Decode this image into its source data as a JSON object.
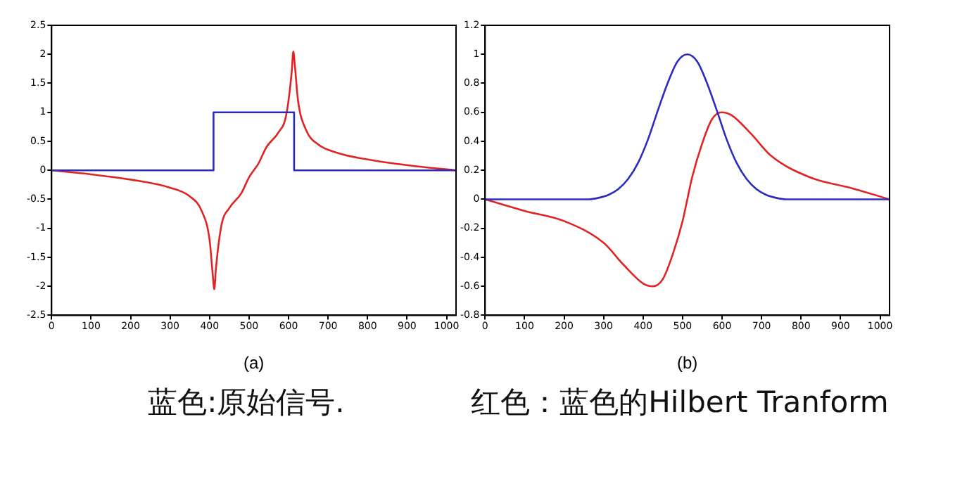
{
  "chart_data": [
    {
      "type": "line",
      "xlabel": "(a)",
      "annotations": [
        "蓝色:原始信号."
      ],
      "xlim": [
        0,
        1024
      ],
      "xticks": [
        0,
        100,
        200,
        300,
        400,
        500,
        600,
        700,
        800,
        900,
        1000
      ],
      "ylim": [
        -2.5,
        2.5
      ],
      "yticks": [
        -2.5,
        -2,
        -1.5,
        -1,
        -0.5,
        0,
        0.5,
        1,
        1.5,
        2,
        2.5
      ],
      "grid": false,
      "legend": false,
      "marker": "none",
      "line_style": "solid",
      "series": [
        {
          "color": "#2b2bc0",
          "x": [
            0,
            410,
            410,
            614,
            614,
            1024
          ],
          "values": [
            0,
            0,
            1,
            1,
            0,
            0
          ]
        },
        {
          "color": "#e02424",
          "x": [
            0,
            100,
            200,
            300,
            350,
            380,
            400,
            408,
            412,
            416,
            430,
            450,
            480,
            500,
            512,
            524,
            544,
            574,
            594,
            608,
            612,
            616,
            624,
            644,
            674,
            724,
            824,
            924,
            1024
          ],
          "values": [
            0,
            -0.07,
            -0.16,
            -0.3,
            -0.45,
            -0.7,
            -1.2,
            -1.8,
            -2.05,
            -1.7,
            -0.95,
            -0.65,
            -0.4,
            -0.12,
            0,
            0.12,
            0.4,
            0.65,
            0.95,
            1.7,
            2.05,
            1.8,
            1.2,
            0.7,
            0.45,
            0.3,
            0.16,
            0.07,
            0
          ]
        }
      ]
    },
    {
      "type": "line",
      "xlabel": "(b)",
      "annotations": [
        "红色：蓝色的Hilbert Tranform"
      ],
      "xlim": [
        0,
        1024
      ],
      "xticks": [
        0,
        100,
        200,
        300,
        400,
        500,
        600,
        700,
        800,
        900,
        1000
      ],
      "ylim": [
        -0.8,
        1.2
      ],
      "yticks": [
        -0.8,
        -0.6,
        -0.4,
        -0.2,
        0,
        0.2,
        0.4,
        0.6,
        0.8,
        1,
        1.2
      ],
      "grid": false,
      "legend": false,
      "marker": "none",
      "line_style": "solid",
      "series": [
        {
          "color": "#2b2bc0",
          "x": [
            0,
            262,
            287,
            312,
            337,
            362,
            387,
            412,
            437,
            462,
            487,
            512,
            537,
            562,
            587,
            612,
            637,
            662,
            687,
            712,
            737,
            762,
            1024
          ],
          "values": [
            0,
            0,
            0.01,
            0.03,
            0.07,
            0.14,
            0.25,
            0.41,
            0.61,
            0.8,
            0.95,
            1,
            0.95,
            0.8,
            0.61,
            0.41,
            0.25,
            0.14,
            0.07,
            0.03,
            0.01,
            0,
            0
          ]
        },
        {
          "color": "#e02424",
          "x": [
            0,
            100,
            200,
            300,
            350,
            400,
            425,
            450,
            475,
            500,
            512,
            524,
            549,
            574,
            599,
            624,
            674,
            724,
            824,
            924,
            1024
          ],
          "values": [
            0,
            -0.08,
            -0.15,
            -0.3,
            -0.45,
            -0.58,
            -0.6,
            -0.55,
            -0.38,
            -0.15,
            0,
            0.15,
            0.38,
            0.55,
            0.6,
            0.58,
            0.45,
            0.3,
            0.15,
            0.08,
            0
          ]
        }
      ]
    }
  ]
}
